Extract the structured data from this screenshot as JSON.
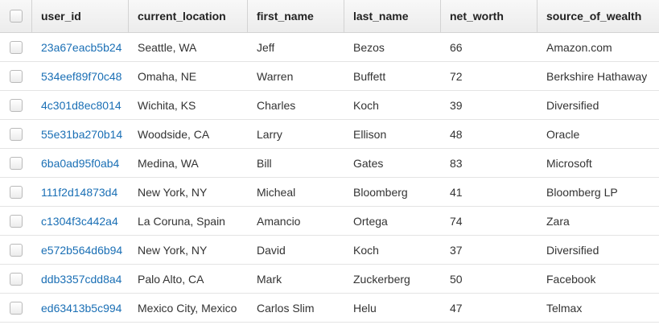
{
  "table": {
    "headers": [
      "user_id",
      "current_location",
      "first_name",
      "last_name",
      "net_worth",
      "source_of_wealth"
    ],
    "rows": [
      {
        "user_id": "23a67eacb5b24",
        "current_location": "Seattle, WA",
        "first_name": "Jeff",
        "last_name": "Bezos",
        "net_worth": "66",
        "source_of_wealth": "Amazon.com"
      },
      {
        "user_id": "534eef89f70c48",
        "current_location": "Omaha, NE",
        "first_name": "Warren",
        "last_name": "Buffett",
        "net_worth": "72",
        "source_of_wealth": "Berkshire Hathaway"
      },
      {
        "user_id": "4c301d8ec8014",
        "current_location": "Wichita, KS",
        "first_name": "Charles",
        "last_name": "Koch",
        "net_worth": "39",
        "source_of_wealth": "Diversified"
      },
      {
        "user_id": "55e31ba270b14",
        "current_location": "Woodside, CA",
        "first_name": "Larry",
        "last_name": "Ellison",
        "net_worth": "48",
        "source_of_wealth": "Oracle"
      },
      {
        "user_id": "6ba0ad95f0ab4",
        "current_location": "Medina, WA",
        "first_name": "Bill",
        "last_name": "Gates",
        "net_worth": "83",
        "source_of_wealth": "Microsoft"
      },
      {
        "user_id": "111f2d14873d4",
        "current_location": "New York, NY",
        "first_name": "Micheal",
        "last_name": "Bloomberg",
        "net_worth": "41",
        "source_of_wealth": "Bloomberg LP"
      },
      {
        "user_id": "c1304f3c442a4",
        "current_location": "La Coruna, Spain",
        "first_name": "Amancio",
        "last_name": "Ortega",
        "net_worth": "74",
        "source_of_wealth": "Zara"
      },
      {
        "user_id": "e572b564d6b94",
        "current_location": "New York, NY",
        "first_name": "David",
        "last_name": "Koch",
        "net_worth": "37",
        "source_of_wealth": "Diversified"
      },
      {
        "user_id": "ddb3357cdd8a4",
        "current_location": "Palo Alto, CA",
        "first_name": "Mark",
        "last_name": "Zuckerberg",
        "net_worth": "50",
        "source_of_wealth": "Facebook"
      },
      {
        "user_id": "ed63413b5c994",
        "current_location": "Mexico City, Mexico",
        "first_name": "Carlos Slim",
        "last_name": "Helu",
        "net_worth": "47",
        "source_of_wealth": "Telmax"
      }
    ]
  },
  "colors": {
    "link": "#1a6fb5",
    "text": "#333333",
    "header_bg": "#ececec",
    "border": "#d3d3d3"
  }
}
